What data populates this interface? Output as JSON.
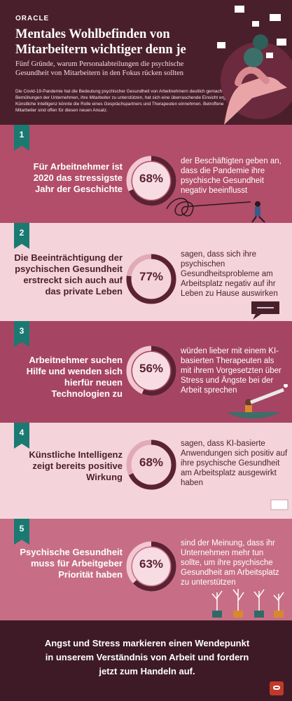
{
  "header": {
    "logo": "ORACLE",
    "title": "Mentales Wohlbefinden von Mitarbeitern wichtiger denn je",
    "subtitle": "Fünf Gründe, warum Personalabteilungen die psychische Gesundheit von Mitarbeitern in den Fokus rücken sollten",
    "intro": "Die Covid-19-Pandemie hat die Bedeutung psychischer Gesundheit von Arbeitnehmern deutlich gemacht. In den Bemühungen der Unternehmen, ihre Mitarbeiter zu unterstützen, hat sich eine überraschende Einsicht ergeben: Künstliche Intelligenz könnte die Rolle eines Gesprächspartners und Therapeuten einnehmen. Betroffene Mitarbeiter sind offen für diesen neuen Ansatz."
  },
  "sections": [
    {
      "num": "1",
      "left": "Für Arbeitnehmer ist 2020 das stressigste Jahr der Geschichte",
      "pct_label": "68%",
      "pct": 0.68,
      "right": "der Beschäftigten geben an, dass die Pandemie ihre psychische Gesundheit negativ beeinflusst"
    },
    {
      "num": "2",
      "left": "Die Beeinträchtigung der psychischen Gesundheit erstreckt sich auch auf das private Leben",
      "pct_label": "77%",
      "pct": 0.77,
      "right": "sagen, dass sich ihre psychischen Gesundheitsprobleme am Arbeitsplatz negativ auf ihr Leben zu Hause auswirken"
    },
    {
      "num": "3",
      "left": "Arbeitnehmer suchen Hilfe und wenden sich hierfür neuen Technologien zu",
      "pct_label": "56%",
      "pct": 0.56,
      "right": "würden lieber mit einem KI-basierten Therapeuten als mit ihrem Vorgesetzten über Stress und Ängste bei der Arbeit sprechen"
    },
    {
      "num": "4",
      "left": "Künstliche Intelligenz zeigt bereits positive Wirkung",
      "pct_label": "68%",
      "pct": 0.68,
      "right": "sagen, dass KI-basierte Anwendungen sich positiv auf ihre psychische Gesundheit am Arbeitsplatz ausgewirkt haben"
    },
    {
      "num": "5",
      "left": "Psychische Gesundheit muss für Arbeitgeber Priorität haben",
      "pct_label": "63%",
      "pct": 0.63,
      "right": "sind der Meinung, dass ihr Unternehmen mehr tun sollte, um ihre psychische Gesundheit am Arbeitsplatz zu unterstützen"
    }
  ],
  "footer": {
    "text": "Angst und Stress markieren einen Wendepunkt in unserem Verständnis von Arbeit und fordern jetzt zum Handeln auf."
  },
  "colors": {
    "header_bg": "#4a1f2c",
    "section1_bg": "#b24d6a",
    "section_light_bg": "#f4d3db",
    "section3_bg": "#a64563",
    "section5_bg": "#c76e86",
    "badge": "#1a7a72",
    "ring": "#5a2233",
    "footer_bg": "#3e1a26"
  }
}
